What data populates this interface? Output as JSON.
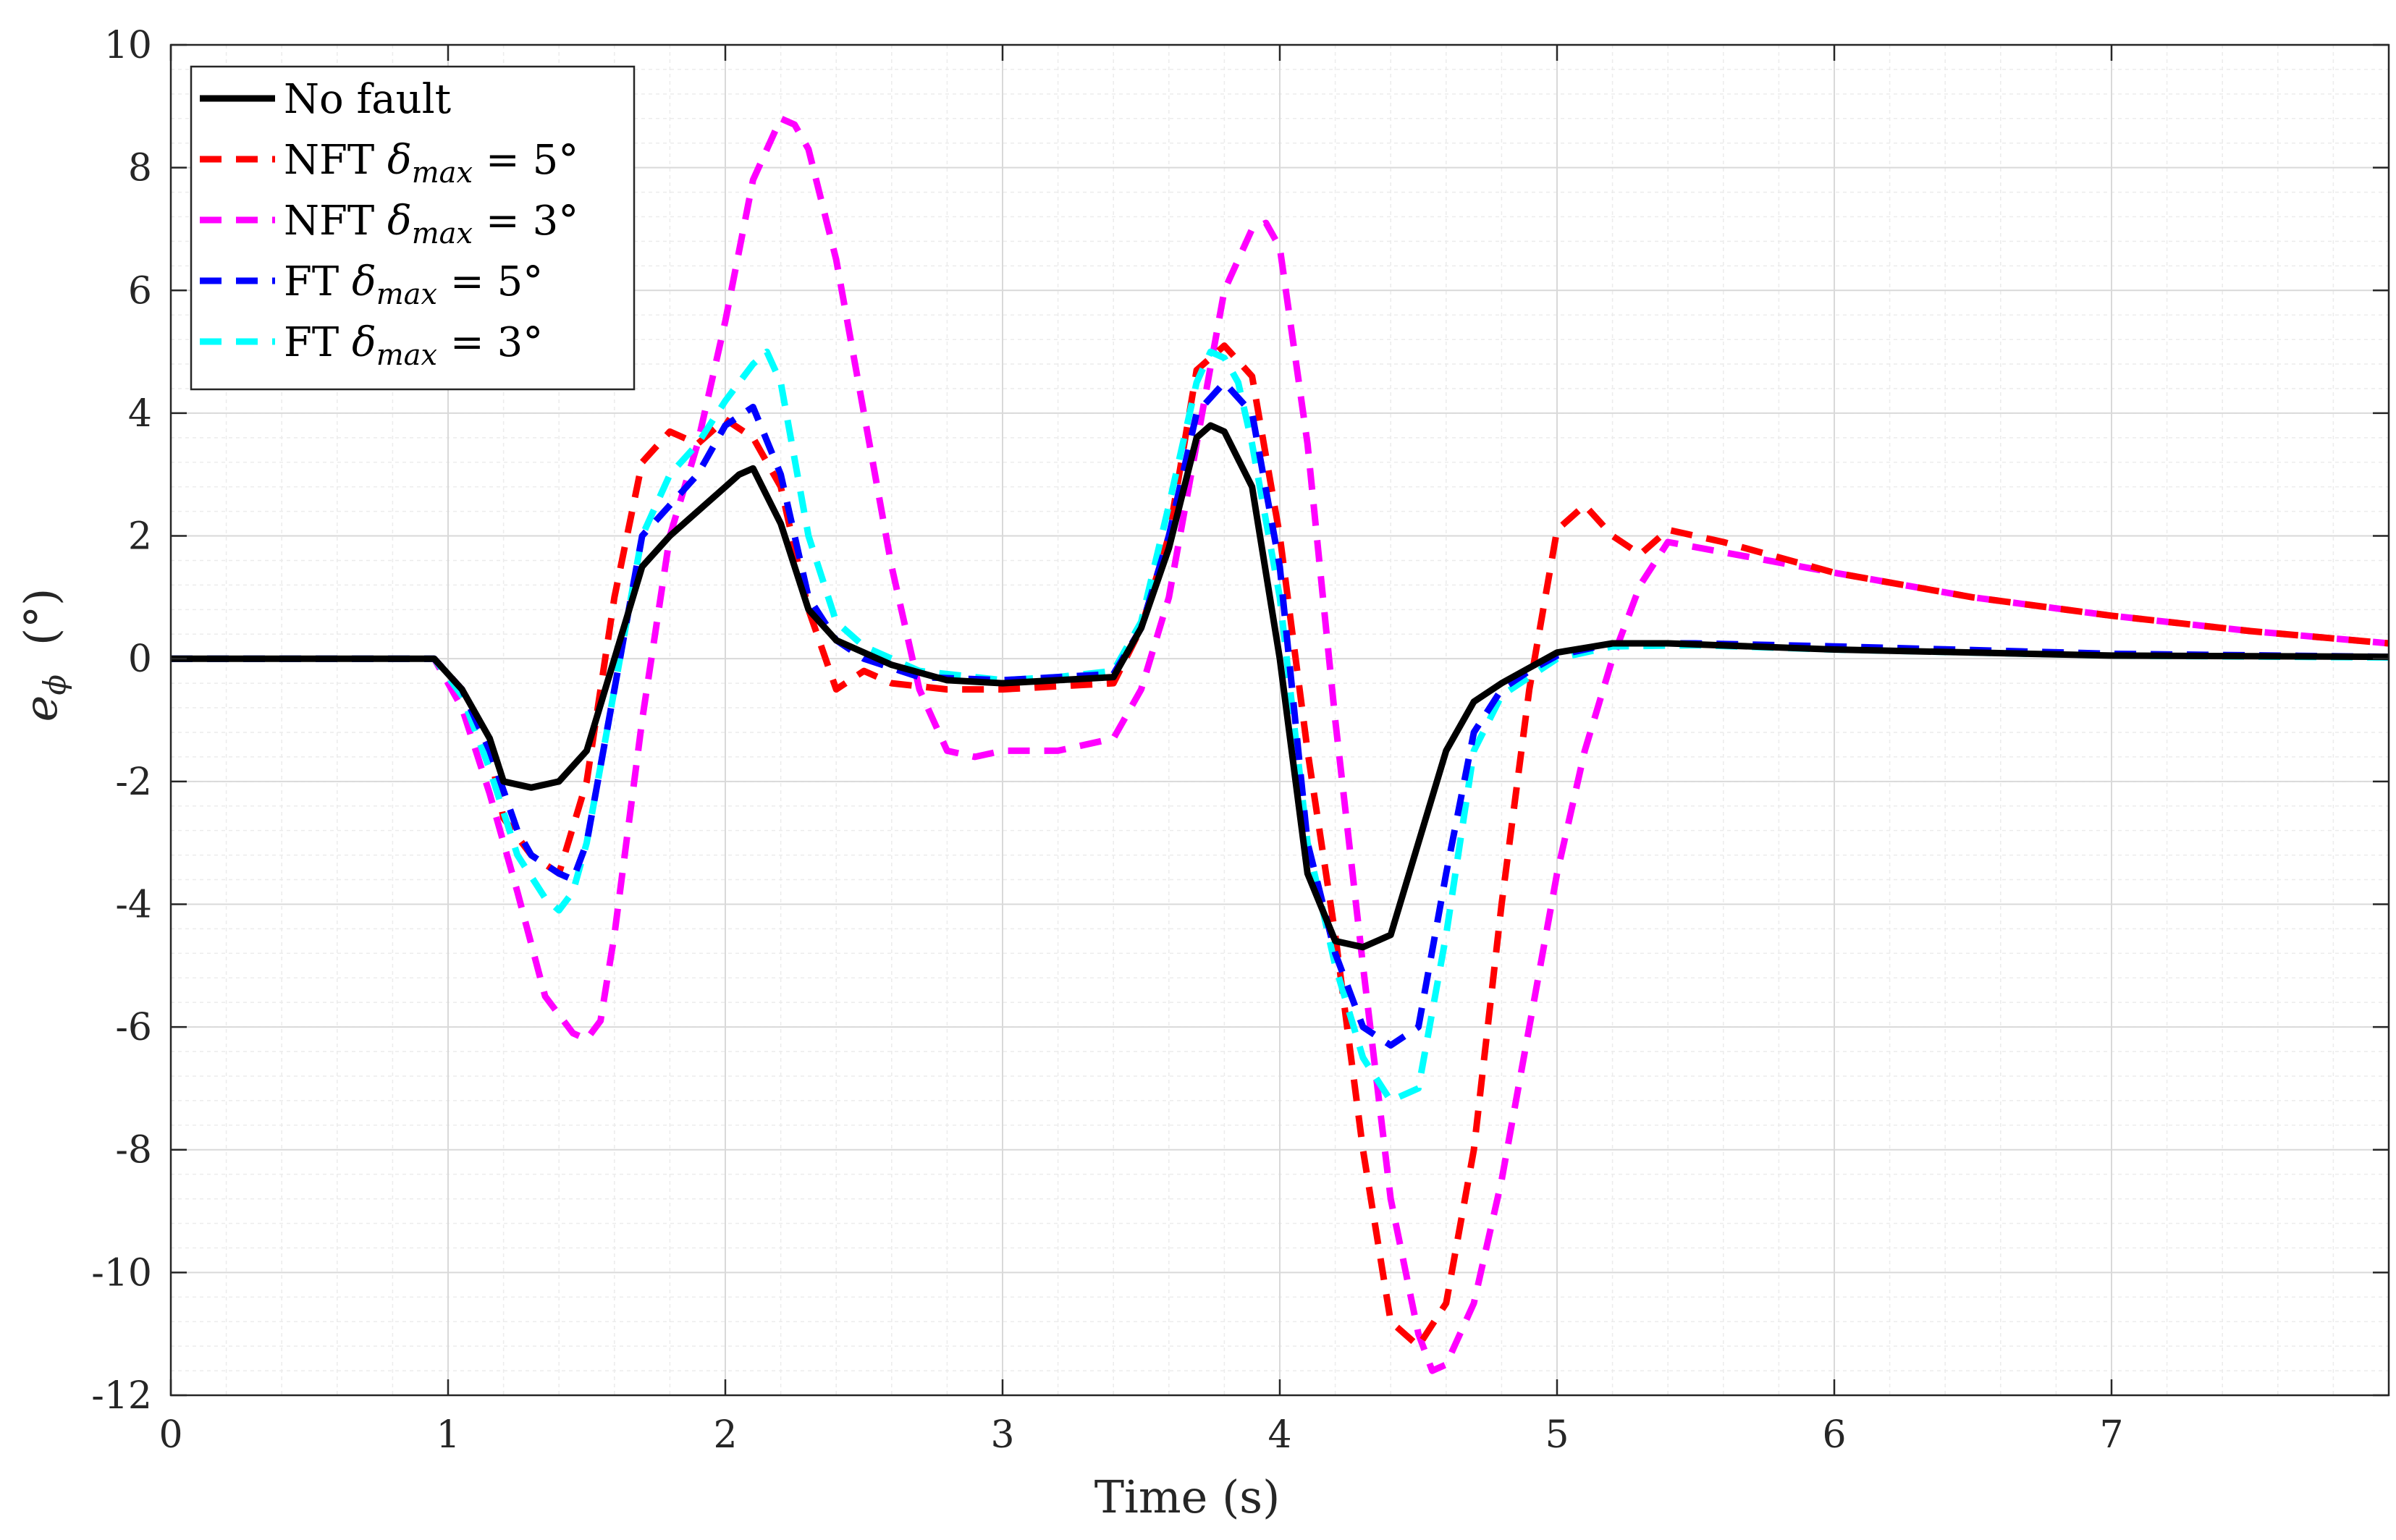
{
  "chart_data": {
    "type": "line",
    "title": "",
    "xlabel": "Time (s)",
    "ylabel_symbol": "e",
    "ylabel_subscript": "ϕ",
    "ylabel_unit": "(°)",
    "xlim": [
      0,
      8
    ],
    "ylim": [
      -12,
      10
    ],
    "xticks": [
      0,
      1,
      2,
      3,
      4,
      5,
      6,
      7
    ],
    "yticks": [
      -12,
      -10,
      -8,
      -6,
      -4,
      -2,
      0,
      2,
      4,
      6,
      8,
      10
    ],
    "grid": true,
    "minor_grid": true,
    "legend_position": "top-left",
    "series": [
      {
        "name": "No fault",
        "legend": {
          "pre": "No fault",
          "sym": "",
          "sub": "",
          "post": ""
        },
        "color": "#000000",
        "style": "solid",
        "x": [
          0,
          0.95,
          1.05,
          1.15,
          1.2,
          1.3,
          1.4,
          1.5,
          1.6,
          1.7,
          1.8,
          1.9,
          2.0,
          2.05,
          2.1,
          2.2,
          2.3,
          2.4,
          2.6,
          2.8,
          3.0,
          3.2,
          3.4,
          3.5,
          3.6,
          3.7,
          3.75,
          3.8,
          3.9,
          4.0,
          4.1,
          4.2,
          4.3,
          4.4,
          4.5,
          4.6,
          4.7,
          4.8,
          5.0,
          5.2,
          5.4,
          6.0,
          7.0,
          8.0
        ],
        "y": [
          0,
          0,
          -0.5,
          -1.3,
          -2.0,
          -2.1,
          -2.0,
          -1.5,
          0.0,
          1.5,
          2.0,
          2.4,
          2.8,
          3.0,
          3.1,
          2.2,
          0.8,
          0.3,
          -0.1,
          -0.35,
          -0.4,
          -0.35,
          -0.3,
          0.5,
          1.8,
          3.6,
          3.8,
          3.7,
          2.8,
          0.0,
          -3.5,
          -4.6,
          -4.7,
          -4.5,
          -3.0,
          -1.5,
          -0.7,
          -0.4,
          0.1,
          0.25,
          0.25,
          0.15,
          0.05,
          0.03
        ]
      },
      {
        "name": "NFT δmax = 5°",
        "legend": {
          "pre": "NFT ",
          "sym": "δ",
          "sub": "max",
          "post": " = 5°"
        },
        "color": "#ff0000",
        "style": "dashed",
        "x": [
          0,
          0.95,
          1.05,
          1.15,
          1.2,
          1.3,
          1.4,
          1.5,
          1.6,
          1.7,
          1.8,
          1.9,
          2.0,
          2.1,
          2.2,
          2.3,
          2.4,
          2.5,
          2.6,
          2.8,
          3.0,
          3.2,
          3.4,
          3.5,
          3.6,
          3.7,
          3.8,
          3.9,
          4.0,
          4.1,
          4.2,
          4.3,
          4.4,
          4.5,
          4.6,
          4.7,
          4.8,
          4.9,
          5.0,
          5.1,
          5.2,
          5.3,
          5.4,
          5.6,
          6.0,
          6.5,
          7.0,
          7.5,
          8.0
        ],
        "y": [
          0,
          0,
          -0.5,
          -1.5,
          -2.6,
          -3.2,
          -3.5,
          -2.0,
          1.0,
          3.2,
          3.7,
          3.5,
          3.9,
          3.6,
          2.8,
          0.8,
          -0.5,
          -0.2,
          -0.4,
          -0.5,
          -0.5,
          -0.45,
          -0.4,
          0.5,
          2.0,
          4.7,
          5.1,
          4.6,
          2.0,
          -1.5,
          -4.5,
          -8.0,
          -10.8,
          -11.2,
          -10.5,
          -8.0,
          -4.0,
          -0.5,
          2.1,
          2.5,
          2.0,
          1.7,
          2.1,
          1.9,
          1.4,
          1.0,
          0.7,
          0.45,
          0.25
        ]
      },
      {
        "name": "NFT δmax = 3°",
        "legend": {
          "pre": "NFT ",
          "sym": "δ",
          "sub": "max",
          "post": " = 3°"
        },
        "color": "#ff00ff",
        "style": "dashed",
        "x": [
          0,
          0.95,
          1.05,
          1.15,
          1.25,
          1.35,
          1.45,
          1.5,
          1.55,
          1.6,
          1.7,
          1.8,
          1.9,
          2.0,
          2.1,
          2.2,
          2.25,
          2.3,
          2.4,
          2.5,
          2.6,
          2.7,
          2.8,
          2.9,
          3.0,
          3.2,
          3.4,
          3.5,
          3.6,
          3.7,
          3.8,
          3.9,
          3.95,
          4.0,
          4.1,
          4.2,
          4.3,
          4.4,
          4.5,
          4.55,
          4.6,
          4.7,
          4.8,
          4.9,
          5.0,
          5.1,
          5.2,
          5.3,
          5.4,
          6.0,
          6.5,
          7.0,
          7.5,
          8.0
        ],
        "y": [
          0,
          0,
          -0.8,
          -2.2,
          -3.8,
          -5.5,
          -6.1,
          -6.2,
          -5.9,
          -4.5,
          -1.0,
          2.0,
          3.5,
          5.5,
          7.8,
          8.8,
          8.7,
          8.3,
          6.5,
          4.0,
          1.5,
          -0.5,
          -1.5,
          -1.6,
          -1.5,
          -1.5,
          -1.3,
          -0.5,
          1.0,
          3.5,
          6.0,
          7.0,
          7.1,
          6.7,
          3.5,
          -1.0,
          -5.0,
          -8.8,
          -11.0,
          -11.6,
          -11.5,
          -10.5,
          -8.5,
          -6.0,
          -3.5,
          -1.5,
          0.0,
          1.2,
          1.9,
          1.4,
          1.0,
          0.7,
          0.45,
          0.25
        ]
      },
      {
        "name": "FT δmax = 5°",
        "legend": {
          "pre": "FT ",
          "sym": "δ",
          "sub": "max",
          "post": " = 5°"
        },
        "color": "#0000ff",
        "style": "dashed",
        "x": [
          0,
          0.95,
          1.05,
          1.15,
          1.25,
          1.3,
          1.4,
          1.45,
          1.5,
          1.6,
          1.7,
          1.8,
          1.9,
          2.0,
          2.1,
          2.2,
          2.3,
          2.4,
          2.5,
          2.7,
          3.0,
          3.2,
          3.4,
          3.5,
          3.6,
          3.7,
          3.8,
          3.9,
          4.0,
          4.1,
          4.2,
          4.3,
          4.4,
          4.5,
          4.6,
          4.7,
          4.8,
          4.9,
          5.0,
          5.2,
          5.5,
          6.0,
          7.0,
          8.0
        ],
        "y": [
          0,
          0,
          -0.5,
          -1.5,
          -2.8,
          -3.2,
          -3.5,
          -3.6,
          -3.0,
          -0.5,
          2.0,
          2.5,
          3.0,
          3.8,
          4.1,
          3.0,
          1.0,
          0.3,
          0.0,
          -0.3,
          -0.35,
          -0.3,
          -0.25,
          0.5,
          2.0,
          4.0,
          4.5,
          4.0,
          1.5,
          -3.0,
          -4.8,
          -6.0,
          -6.3,
          -6.0,
          -3.5,
          -1.2,
          -0.5,
          -0.2,
          0.05,
          0.25,
          0.25,
          0.2,
          0.08,
          0.03
        ]
      },
      {
        "name": "FT δmax = 3°",
        "legend": {
          "pre": "FT ",
          "sym": "δ",
          "sub": "max",
          "post": " = 3°"
        },
        "color": "#00ffff",
        "style": "dashed",
        "x": [
          0,
          0.95,
          1.05,
          1.15,
          1.25,
          1.35,
          1.4,
          1.45,
          1.5,
          1.6,
          1.7,
          1.8,
          1.9,
          2.0,
          2.1,
          2.15,
          2.2,
          2.3,
          2.4,
          2.5,
          2.7,
          3.0,
          3.2,
          3.4,
          3.5,
          3.6,
          3.7,
          3.75,
          3.8,
          3.85,
          3.9,
          4.0,
          4.1,
          4.2,
          4.3,
          4.4,
          4.5,
          4.6,
          4.7,
          4.8,
          4.9,
          5.0,
          5.2,
          5.5,
          6.0,
          7.0,
          8.0
        ],
        "y": [
          0,
          0,
          -0.6,
          -1.8,
          -3.2,
          -3.9,
          -4.1,
          -3.8,
          -3.0,
          -0.5,
          2.0,
          3.0,
          3.5,
          4.2,
          4.8,
          5.0,
          4.5,
          2.0,
          0.6,
          0.2,
          -0.2,
          -0.35,
          -0.3,
          -0.2,
          0.6,
          2.5,
          4.5,
          5.0,
          4.9,
          4.5,
          3.5,
          1.0,
          -3.0,
          -5.0,
          -6.5,
          -7.2,
          -7.0,
          -4.5,
          -1.5,
          -0.6,
          -0.3,
          0.0,
          0.2,
          0.22,
          0.15,
          0.05,
          0.02
        ]
      }
    ]
  }
}
